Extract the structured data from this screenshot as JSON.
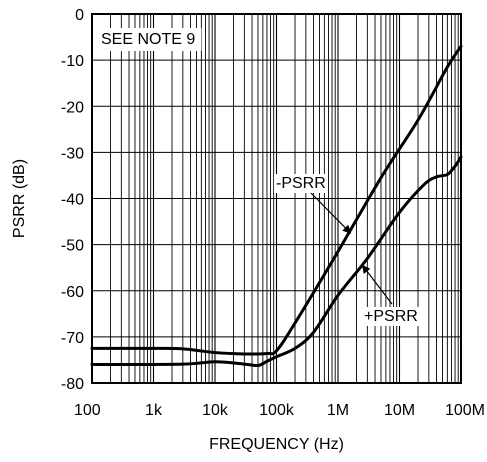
{
  "chart_data": {
    "type": "line",
    "title": "",
    "xlabel": "FREQUENCY (Hz)",
    "ylabel": "PSRR (dB)",
    "xscale": "log",
    "xlim": [
      100,
      100000000
    ],
    "ylim": [
      -80,
      0
    ],
    "grid": true,
    "x_ticks": [
      {
        "value": 100,
        "label": "100"
      },
      {
        "value": 1000,
        "label": "1k"
      },
      {
        "value": 10000,
        "label": "10k"
      },
      {
        "value": 100000,
        "label": "100k"
      },
      {
        "value": 1000000,
        "label": "1M"
      },
      {
        "value": 10000000,
        "label": "10M"
      },
      {
        "value": 100000000,
        "label": "100M"
      }
    ],
    "y_ticks": [
      {
        "value": 0,
        "label": "0"
      },
      {
        "value": -10,
        "label": "-10"
      },
      {
        "value": -20,
        "label": "-20"
      },
      {
        "value": -30,
        "label": "-30"
      },
      {
        "value": -40,
        "label": "-40"
      },
      {
        "value": -50,
        "label": "-50"
      },
      {
        "value": -60,
        "label": "-60"
      },
      {
        "value": -70,
        "label": "-70"
      },
      {
        "value": -80,
        "label": "-80"
      }
    ],
    "note": "SEE NOTE 9",
    "series": [
      {
        "name": "-PSRR",
        "points": [
          [
            100,
            -72.5
          ],
          [
            1000,
            -72.5
          ],
          [
            3000,
            -72.6
          ],
          [
            10000,
            -73.4
          ],
          [
            30000,
            -73.7
          ],
          [
            70000,
            -73.6
          ],
          [
            100000,
            -73.0
          ],
          [
            200000,
            -67.0
          ],
          [
            1000000,
            -51.5
          ],
          [
            5000000,
            -35.5
          ],
          [
            20000000,
            -23.0
          ],
          [
            60000000,
            -11.5
          ],
          [
            100000000,
            -7.0
          ]
        ]
      },
      {
        "name": "+PSRR",
        "points": [
          [
            100,
            -76.0
          ],
          [
            3000,
            -75.9
          ],
          [
            10000,
            -75.4
          ],
          [
            30000,
            -75.9
          ],
          [
            50000,
            -76.2
          ],
          [
            70000,
            -75.3
          ],
          [
            100000,
            -74.3
          ],
          [
            200000,
            -72.5
          ],
          [
            400000,
            -69.0
          ],
          [
            1000000,
            -61.0
          ],
          [
            3000000,
            -53.0
          ],
          [
            10000000,
            -43.0
          ],
          [
            25000000,
            -37.0
          ],
          [
            40000000,
            -35.3
          ],
          [
            60000000,
            -34.8
          ],
          [
            80000000,
            -33.0
          ],
          [
            100000000,
            -31.0
          ]
        ]
      }
    ],
    "annotations": [
      {
        "text": "-PSRR",
        "series": "-PSRR",
        "x": 1600000,
        "y": -47.5
      },
      {
        "text": "+PSRR",
        "series": "+PSRR",
        "x": 2500000,
        "y": -54.5
      }
    ]
  }
}
